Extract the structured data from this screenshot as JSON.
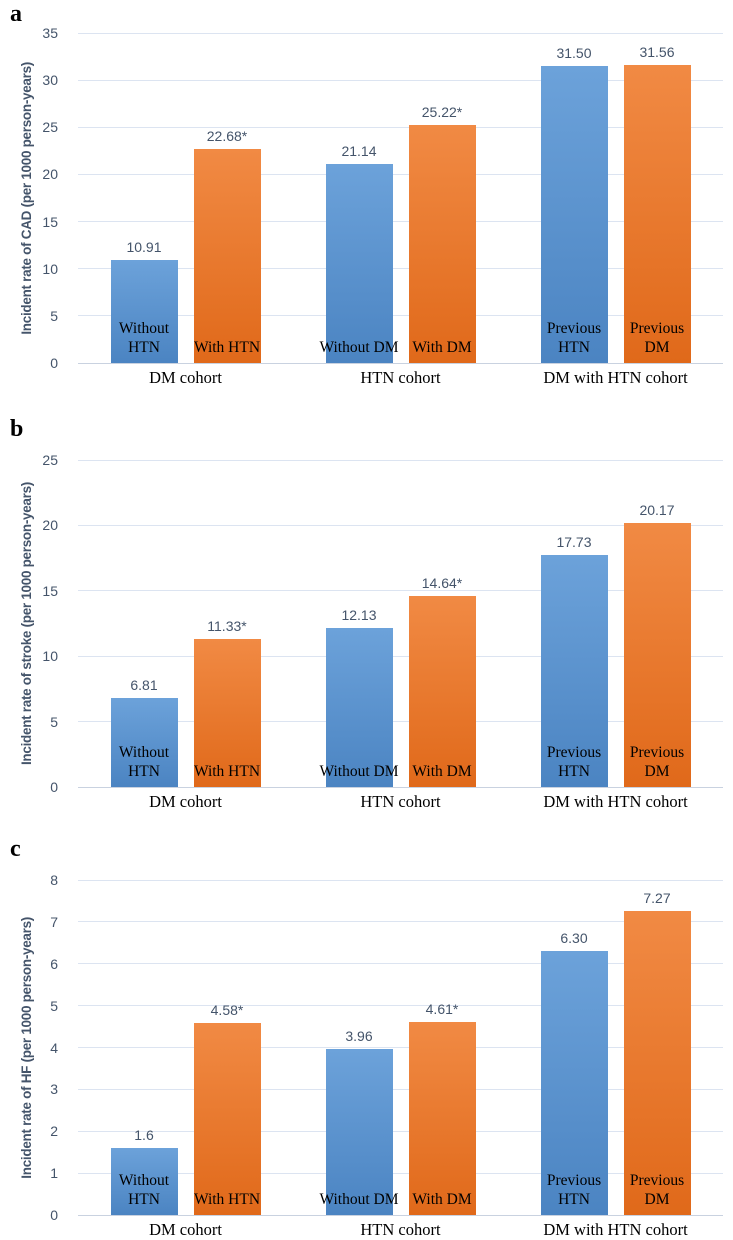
{
  "colors": {
    "bar_blue_top": "#6CA2DA",
    "bar_blue_bottom": "#4B84C2",
    "bar_orange_top": "#F18A44",
    "bar_orange_bottom": "#E0691A",
    "axis_text": "#44546A",
    "category_text": "#000000",
    "gridline": "#DCE4F1",
    "baseline": "#C9D2E0",
    "background": "#FFFFFF"
  },
  "chart_data": [
    {
      "type": "bar",
      "panel_label": "a",
      "title": "",
      "xlabel": "",
      "ylabel": "Incident rate of CAD (per 1000 person-years)",
      "ylim": [
        0,
        35
      ],
      "ytick_step": 5,
      "grid": true,
      "legend": "none",
      "categories": [
        "DM cohort",
        "HTN cohort",
        "DM with HTN cohort"
      ],
      "groups": [
        {
          "category": "DM cohort",
          "bars": [
            {
              "label": "Without HTN",
              "value": 10.91,
              "display": "10.91",
              "color": "blue"
            },
            {
              "label": "With HTN",
              "value": 22.68,
              "display": "22.68*",
              "color": "orange"
            }
          ]
        },
        {
          "category": "HTN cohort",
          "bars": [
            {
              "label": "Without DM",
              "value": 21.14,
              "display": "21.14",
              "color": "blue"
            },
            {
              "label": "With DM",
              "value": 25.22,
              "display": "25.22*",
              "color": "orange"
            }
          ]
        },
        {
          "category": "DM with HTN cohort",
          "bars": [
            {
              "label": "Previous HTN",
              "value": 31.5,
              "display": "31.50",
              "color": "blue"
            },
            {
              "label": "Previous DM",
              "value": 31.56,
              "display": "31.56",
              "color": "orange"
            }
          ]
        }
      ]
    },
    {
      "type": "bar",
      "panel_label": "b",
      "title": "",
      "xlabel": "",
      "ylabel": "Incident rate of stroke (per 1000 person-years)",
      "ylim": [
        0,
        25
      ],
      "ytick_step": 5,
      "grid": true,
      "legend": "none",
      "categories": [
        "DM cohort",
        "HTN cohort",
        "DM with HTN cohort"
      ],
      "groups": [
        {
          "category": "DM cohort",
          "bars": [
            {
              "label": "Without HTN",
              "value": 6.81,
              "display": "6.81",
              "color": "blue"
            },
            {
              "label": "With HTN",
              "value": 11.33,
              "display": "11.33*",
              "color": "orange"
            }
          ]
        },
        {
          "category": "HTN cohort",
          "bars": [
            {
              "label": "Without DM",
              "value": 12.13,
              "display": "12.13",
              "color": "blue"
            },
            {
              "label": "With DM",
              "value": 14.64,
              "display": "14.64*",
              "color": "orange"
            }
          ]
        },
        {
          "category": "DM with HTN cohort",
          "bars": [
            {
              "label": "Previous HTN",
              "value": 17.73,
              "display": "17.73",
              "color": "blue"
            },
            {
              "label": "Previous DM",
              "value": 20.17,
              "display": "20.17",
              "color": "orange"
            }
          ]
        }
      ]
    },
    {
      "type": "bar",
      "panel_label": "c",
      "title": "",
      "xlabel": "",
      "ylabel": "Incident rate of HF (per 1000 person-years)",
      "ylim": [
        0,
        8
      ],
      "ytick_step": 1,
      "grid": true,
      "legend": "none",
      "categories": [
        "DM cohort",
        "HTN cohort",
        "DM with HTN cohort"
      ],
      "groups": [
        {
          "category": "DM cohort",
          "bars": [
            {
              "label": "Without HTN",
              "value": 1.6,
              "display": "1.6",
              "color": "blue"
            },
            {
              "label": "With HTN",
              "value": 4.58,
              "display": "4.58*",
              "color": "orange"
            }
          ]
        },
        {
          "category": "HTN cohort",
          "bars": [
            {
              "label": "Without DM",
              "value": 3.96,
              "display": "3.96",
              "color": "blue"
            },
            {
              "label": "With DM",
              "value": 4.61,
              "display": "4.61*",
              "color": "orange"
            }
          ]
        },
        {
          "category": "DM with HTN cohort",
          "bars": [
            {
              "label": "Previous HTN",
              "value": 6.3,
              "display": "6.30",
              "color": "blue"
            },
            {
              "label": "Previous DM",
              "value": 7.27,
              "display": "7.27",
              "color": "orange"
            }
          ]
        }
      ]
    }
  ]
}
